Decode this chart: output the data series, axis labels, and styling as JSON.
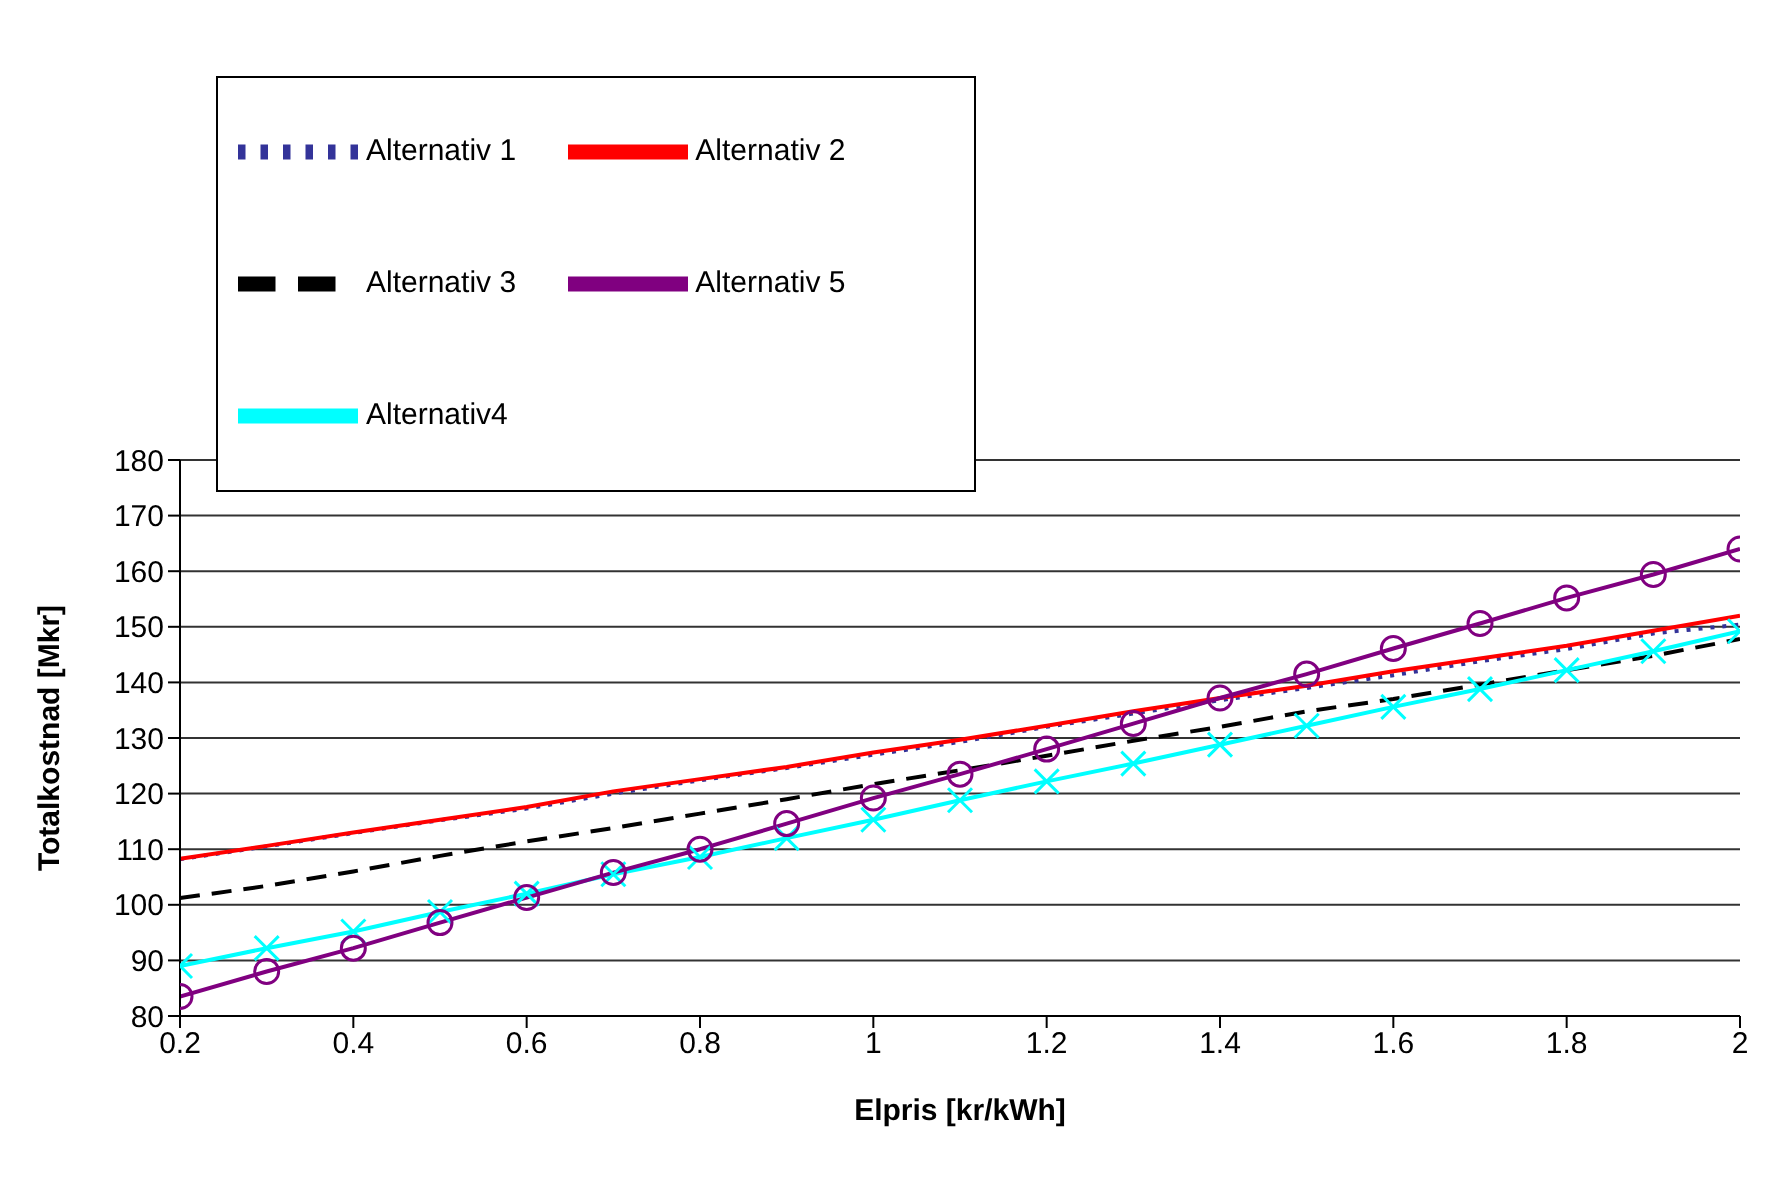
{
  "chart_data": {
    "type": "line",
    "xlabel": "Elpris [kr/kWh]",
    "ylabel": "Totalkostnad [Mkr]",
    "x": [
      0.2,
      0.3,
      0.4,
      0.5,
      0.6,
      0.7,
      0.8,
      0.9,
      1.0,
      1.1,
      1.2,
      1.3,
      1.4,
      1.5,
      1.6,
      1.7,
      1.8,
      1.9,
      2.0
    ],
    "series": [
      {
        "name": "Alternativ 1",
        "color": "#333399",
        "line_style": "dotted",
        "marker": "none",
        "values": [
          108.2,
          110.5,
          112.9,
          115.2,
          117.3,
          120,
          122.4,
          124.6,
          127,
          129.3,
          132,
          134.4,
          136.8,
          139,
          141.3,
          143.8,
          146,
          148.8,
          150.4
        ]
      },
      {
        "name": "Alternativ 2",
        "color": "#ff0000",
        "line_style": "solid",
        "marker": "none",
        "values": [
          108.3,
          110.6,
          113,
          115.3,
          117.6,
          120.4,
          122.6,
          124.8,
          127.4,
          129.7,
          132.2,
          134.8,
          137.2,
          139.4,
          142,
          144.3,
          146.6,
          149.3,
          152
        ]
      },
      {
        "name": "Alternativ 3",
        "color": "#000000",
        "line_style": "dashed",
        "marker": "none",
        "values": [
          101.2,
          103.4,
          106,
          108.8,
          111.4,
          113.8,
          116.4,
          119,
          121.7,
          124.2,
          126.8,
          129.5,
          132,
          134.8,
          137,
          139.6,
          142.2,
          144.8,
          147.8
        ]
      },
      {
        "name": "Alternativ4",
        "color": "#00ffff",
        "line_style": "solid",
        "marker": "cross",
        "values": [
          89,
          92.2,
          95.2,
          98.7,
          102,
          105.5,
          108.6,
          112,
          115.3,
          118.8,
          122.2,
          125.4,
          128.8,
          132.2,
          135.6,
          138.8,
          142.2,
          145.6,
          149.2
        ]
      },
      {
        "name": "Alternativ 5",
        "color": "#800080",
        "line_style": "solid",
        "marker": "circle",
        "values": [
          83.5,
          88,
          92.2,
          96.8,
          101.3,
          105.8,
          110,
          114.6,
          119.2,
          123.5,
          128,
          132.6,
          137.2,
          141.5,
          146.1,
          150.6,
          155.2,
          159.4,
          164
        ]
      }
    ],
    "xlim": [
      0.2,
      2
    ],
    "xticks": [
      0.2,
      0.4,
      0.6,
      0.8,
      1,
      1.2,
      1.4,
      1.6,
      1.8,
      2
    ],
    "ylim": [
      80,
      180
    ],
    "yticks": [
      80,
      90,
      100,
      110,
      120,
      130,
      140,
      150,
      160,
      170,
      180
    ],
    "grid": "y",
    "legend": "top left"
  }
}
